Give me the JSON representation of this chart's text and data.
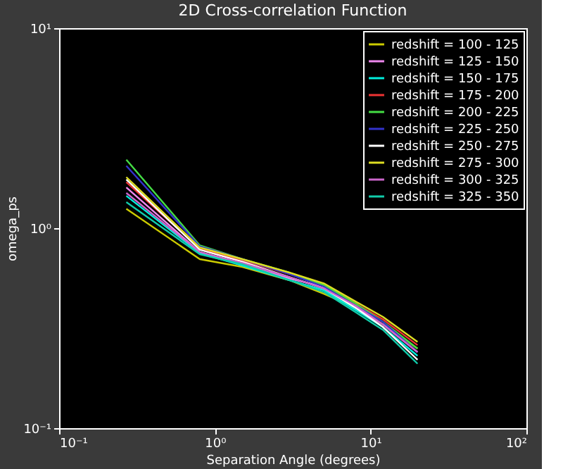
{
  "chart_data": {
    "type": "line",
    "title": "2D Cross-correlation Function",
    "xlabel": "Separation Angle (degrees)",
    "ylabel": "omega_ps",
    "log": "xy",
    "grid": false,
    "legend": "top right",
    "line_style": "solid",
    "marker": "none",
    "xlim": [
      0.1,
      100
    ],
    "ylim": [
      0.1,
      10
    ],
    "xticks": [
      {
        "value": 0.1,
        "label": "10⁻¹"
      },
      {
        "value": 1,
        "label": "10⁰"
      },
      {
        "value": 10,
        "label": "10¹"
      },
      {
        "value": 100,
        "label": "10²"
      }
    ],
    "yticks": [
      {
        "value": 0.1,
        "label": "10⁻¹"
      },
      {
        "value": 1,
        "label": "10⁰"
      },
      {
        "value": 10,
        "label": "10¹"
      }
    ],
    "x": [
      0.27,
      0.8,
      1.5,
      3,
      5,
      8,
      12,
      20
    ],
    "series": [
      {
        "name": "redshift = 100 - 125",
        "color": "#cccc00",
        "values": [
          1.25,
          0.7,
          0.64,
          0.55,
          0.47,
          0.4,
          0.33,
          0.25
        ]
      },
      {
        "name": "redshift = 125 - 150",
        "color": "#ee88ee",
        "values": [
          1.6,
          0.76,
          0.66,
          0.56,
          0.51,
          0.4,
          0.33,
          0.24
        ]
      },
      {
        "name": "redshift = 150 - 175",
        "color": "#00eedd",
        "values": [
          1.45,
          0.75,
          0.65,
          0.55,
          0.49,
          0.39,
          0.32,
          0.23
        ]
      },
      {
        "name": "redshift = 175 - 200",
        "color": "#ee3333",
        "values": [
          1.7,
          0.79,
          0.69,
          0.59,
          0.52,
          0.42,
          0.35,
          0.26
        ]
      },
      {
        "name": "redshift = 200 - 225",
        "color": "#44dd44",
        "values": [
          2.2,
          0.82,
          0.7,
          0.6,
          0.52,
          0.42,
          0.34,
          0.25
        ]
      },
      {
        "name": "redshift = 225 - 250",
        "color": "#3333cc",
        "values": [
          2.05,
          0.81,
          0.7,
          0.59,
          0.51,
          0.41,
          0.34,
          0.24
        ]
      },
      {
        "name": "redshift = 250 - 275",
        "color": "#ffffff",
        "values": [
          1.75,
          0.78,
          0.68,
          0.57,
          0.5,
          0.4,
          0.32,
          0.22
        ]
      },
      {
        "name": "redshift = 275 - 300",
        "color": "#dddd22",
        "values": [
          1.8,
          0.8,
          0.7,
          0.6,
          0.53,
          0.43,
          0.36,
          0.27
        ]
      },
      {
        "name": "redshift = 300 - 325",
        "color": "#cc66cc",
        "values": [
          1.5,
          0.76,
          0.67,
          0.57,
          0.5,
          0.41,
          0.33,
          0.24
        ]
      },
      {
        "name": "redshift = 325 - 350",
        "color": "#11ccaa",
        "values": [
          1.35,
          0.74,
          0.66,
          0.55,
          0.48,
          0.38,
          0.31,
          0.21
        ]
      }
    ]
  }
}
